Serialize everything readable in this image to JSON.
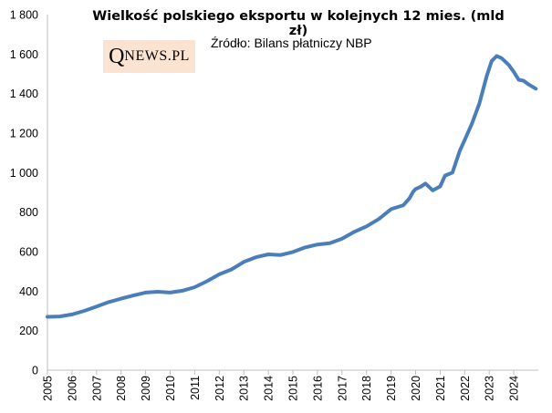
{
  "title": "Wielkość polskiego eksportu w kolejnych 12 mies. (mld zł)",
  "subtitle": "Źródło: Bilans płatniczy NBP",
  "logo": {
    "q": "Q",
    "rest": "NEWS.PL",
    "background": "#fbe3d2"
  },
  "chart_data": {
    "type": "line",
    "title": "Wielkość polskiego eksportu w kolejnych 12 mies. (mld zł)",
    "xlabel": "",
    "ylabel": "",
    "ylim": [
      0,
      1800
    ],
    "yticks": [
      "0",
      "200",
      "400",
      "600",
      "800",
      "1 000",
      "1 200",
      "1 400",
      "1 600",
      "1 800"
    ],
    "xticks": [
      "2005",
      "2006",
      "2007",
      "2008",
      "2009",
      "2010",
      "2011",
      "2012",
      "2013",
      "2014",
      "2015",
      "2016",
      "2017",
      "2018",
      "2019",
      "2020",
      "2021",
      "2022",
      "2023",
      "2024"
    ],
    "grid": false,
    "line_color": "#4a7ebb",
    "series": [
      {
        "x": [
          2005.0,
          2005.5,
          2006.0,
          2006.5,
          2007.0,
          2007.5,
          2008.0,
          2008.5,
          2009.0,
          2009.5,
          2010.0,
          2010.5,
          2011.0,
          2011.5,
          2012.0,
          2012.5,
          2013.0,
          2013.5,
          2014.0,
          2014.5,
          2015.0,
          2015.5,
          2016.0,
          2016.5,
          2017.0,
          2017.5,
          2018.0,
          2018.5,
          2019.0,
          2019.5,
          2019.75,
          2019.9,
          2020.0,
          2020.2,
          2020.4,
          2020.7,
          2021.0,
          2021.2,
          2021.5,
          2021.8,
          2022.0,
          2022.3,
          2022.6,
          2022.9,
          2023.1,
          2023.3,
          2023.5,
          2023.8,
          2024.0,
          2024.2,
          2024.4,
          2024.6,
          2024.9
        ],
        "values": [
          270,
          272,
          282,
          300,
          322,
          345,
          362,
          378,
          393,
          397,
          393,
          402,
          420,
          450,
          485,
          510,
          548,
          572,
          586,
          583,
          598,
          621,
          636,
          643,
          665,
          700,
          728,
          765,
          815,
          835,
          870,
          903,
          917,
          928,
          945,
          910,
          930,
          985,
          1000,
          1110,
          1165,
          1250,
          1350,
          1490,
          1565,
          1590,
          1580,
          1545,
          1510,
          1470,
          1465,
          1447,
          1425
        ]
      }
    ]
  }
}
